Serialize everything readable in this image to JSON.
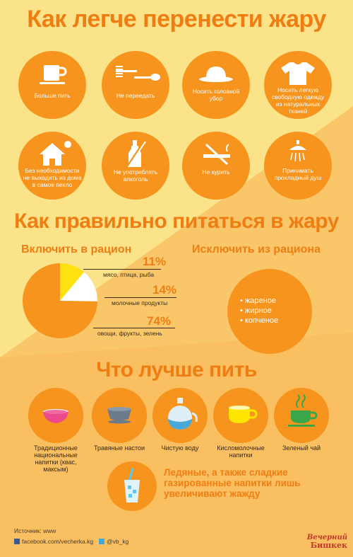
{
  "title": "Как легче перенести жару",
  "tips": [
    {
      "icon": "cup-icon",
      "label": "Больше пить"
    },
    {
      "icon": "fork-spoon-icon",
      "label": "Не переедать"
    },
    {
      "icon": "hat-icon",
      "label": "Носить головной убор"
    },
    {
      "icon": "tshirt-icon",
      "label": "Носить легкую свободную одежду из натуральных тканей"
    },
    {
      "icon": "house-sun-icon",
      "label": "Без необходимости не выходить из дома в самое пекло"
    },
    {
      "icon": "no-alcohol-icon",
      "label": "Не употреблять алкоголь"
    },
    {
      "icon": "no-smoking-icon",
      "label": "Не курить"
    },
    {
      "icon": "shower-icon",
      "label": "Принимать прохладный душ"
    }
  ],
  "diet": {
    "title": "Как правильно питаться в жару",
    "include_title": "Включить в рацион",
    "exclude_title": "Исключить из рациона",
    "exclude_items": [
      "жареное",
      "жирное",
      "копченое"
    ]
  },
  "chart_data": {
    "type": "pie",
    "title": "Включить в рацион",
    "labels": [
      "мясо, птица, рыба",
      "молочные продукты",
      "овощи, фрукты, зелень"
    ],
    "values": [
      11,
      14,
      74
    ],
    "value_labels": [
      "11%",
      "14%",
      "74%"
    ],
    "colors": [
      "#ffe20f",
      "#ffffff",
      "#f7941d"
    ]
  },
  "drinks": {
    "title": "Что лучше пить",
    "items": [
      {
        "icon": "bowl-icon",
        "label": "Традиционные национальные напитки (квас, максым)"
      },
      {
        "icon": "tea-cup-icon",
        "label": "Травяные настои"
      },
      {
        "icon": "water-bottle-icon",
        "label": "Чистую воду"
      },
      {
        "icon": "milk-cup-icon",
        "label": "Кисломолочные напитки"
      },
      {
        "icon": "green-tea-icon",
        "label": "Зеленый чай"
      }
    ],
    "warning": "Ледяные, а также сладкие газированные напитки лишь увеличивают жажду"
  },
  "footer": {
    "source": "Источник: www",
    "facebook": "facebook.com/vecherka.kg",
    "twitter": "@vb_kg",
    "logo_line1": "Вечерний",
    "logo_line2": "Бишкек"
  },
  "colors": {
    "orange": "#f7941d",
    "title": "#f07d12",
    "yellow": "#ffe20f",
    "background": "#fbe38a"
  }
}
